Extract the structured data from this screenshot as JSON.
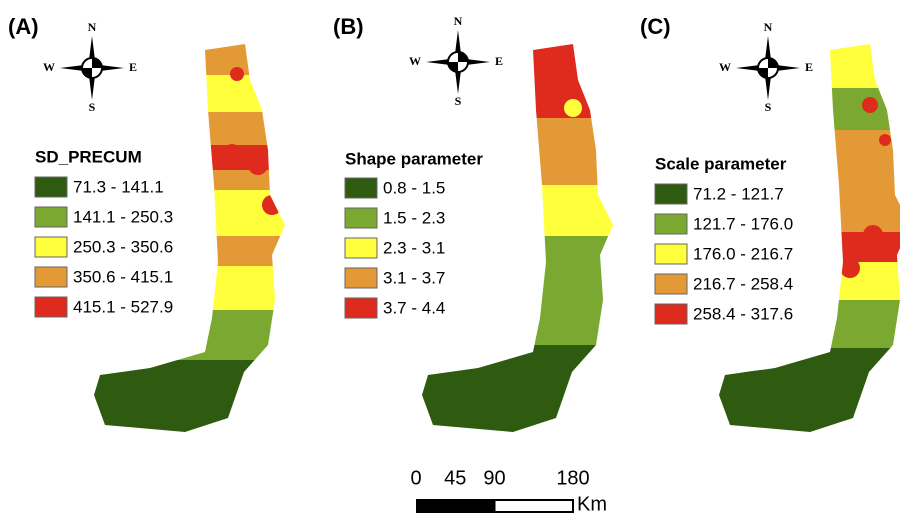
{
  "panels": [
    {
      "label": "(A)",
      "legend": {
        "title": "SD_PRECUM",
        "items": [
          {
            "label": "71.3 - 141.1",
            "color": "#2e5b10"
          },
          {
            "label": "141.1 - 250.3",
            "color": "#7aa830"
          },
          {
            "label": "250.3 - 350.6",
            "color": "#ffff3c"
          },
          {
            "label": "350.6 - 415.1",
            "color": "#e39a36"
          },
          {
            "label": "415.1 - 527.9",
            "color": "#df2a1e"
          }
        ]
      },
      "compass": {
        "n": "N",
        "s": "S",
        "e": "E",
        "w": "W"
      }
    },
    {
      "label": "(B)",
      "legend": {
        "title": "Shape parameter",
        "items": [
          {
            "label": "0.8 - 1.5",
            "color": "#2e5b10"
          },
          {
            "label": "1.5 - 2.3",
            "color": "#7aa830"
          },
          {
            "label": "2.3 - 3.1",
            "color": "#ffff3c"
          },
          {
            "label": "3.1 - 3.7",
            "color": "#e39a36"
          },
          {
            "label": "3.7 - 4.4",
            "color": "#df2a1e"
          }
        ]
      },
      "compass": {
        "n": "N",
        "s": "S",
        "e": "E",
        "w": "W"
      }
    },
    {
      "label": "(C)",
      "legend": {
        "title": "Scale parameter",
        "items": [
          {
            "label": "71.2 - 121.7",
            "color": "#2e5b10"
          },
          {
            "label": "121.7 - 176.0",
            "color": "#7aa830"
          },
          {
            "label": "176.0 - 216.7",
            "color": "#ffff3c"
          },
          {
            "label": "216.7 - 258.4",
            "color": "#e39a36"
          },
          {
            "label": "258.4 - 317.6",
            "color": "#df2a1e"
          }
        ]
      },
      "compass": {
        "n": "N",
        "s": "S",
        "e": "E",
        "w": "W"
      }
    }
  ],
  "scale_bar": {
    "ticks": [
      0,
      45,
      90,
      180
    ],
    "unit": "Km"
  }
}
